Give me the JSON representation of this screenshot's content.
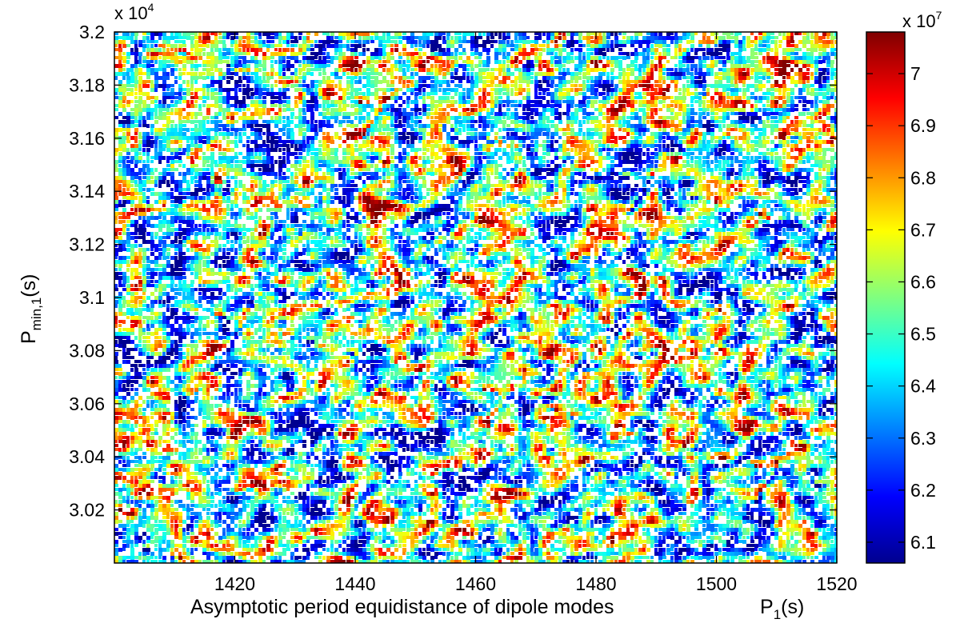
{
  "chart_data": {
    "type": "heatmap",
    "title": "",
    "xlabel": "Asymptotic period equidistance of dipole modes",
    "xlabel_symbol": "P",
    "xlabel_symbol_sub": "1",
    "xlabel_unit": "(s)",
    "ylabel_symbol": "P",
    "ylabel_symbol_sub": "min,1",
    "ylabel_unit": "(s)",
    "xlim": [
      1400,
      1520
    ],
    "ylim": [
      30000,
      32000
    ],
    "x_ticks": [
      1420,
      1440,
      1460,
      1480,
      1500,
      1520
    ],
    "x_tick_labels": [
      "1420",
      "1440",
      "1460",
      "1480",
      "1500",
      "1520"
    ],
    "y_ticks": [
      3.02,
      3.04,
      3.06,
      3.08,
      3.1,
      3.12,
      3.14,
      3.16,
      3.18,
      3.2
    ],
    "y_tick_labels": [
      "3.02",
      "3.04",
      "3.06",
      "3.08",
      "3.1",
      "3.12",
      "3.14",
      "3.16",
      "3.18",
      "3.2"
    ],
    "y_multiplier_base": "x 10",
    "y_multiplier_exp": "4",
    "colorbar": {
      "range": [
        6.06,
        7.08
      ],
      "ticks": [
        6.1,
        6.2,
        6.3,
        6.4,
        6.5,
        6.6,
        6.7,
        6.8,
        6.9,
        7.0
      ],
      "tick_labels": [
        "6.1",
        "6.2",
        "6.3",
        "6.4",
        "6.5",
        "6.6",
        "6.7",
        "6.8",
        "6.9",
        "7"
      ],
      "multiplier_base": "x 10",
      "multiplier_exp": "7",
      "colormap": "jet"
    },
    "grid": false,
    "plot_style": "filled contour field with diagonal ridges (high values red, low values blue)",
    "field": {
      "ridge_slope": -0.55,
      "min_value": 6.06,
      "max_value": 7.08
    }
  },
  "colors": {
    "axis": "#000000",
    "background": "#ffffff",
    "jet_stops": [
      "#00008f",
      "#0000ff",
      "#00ffff",
      "#ffff00",
      "#ff0000",
      "#800000"
    ]
  }
}
